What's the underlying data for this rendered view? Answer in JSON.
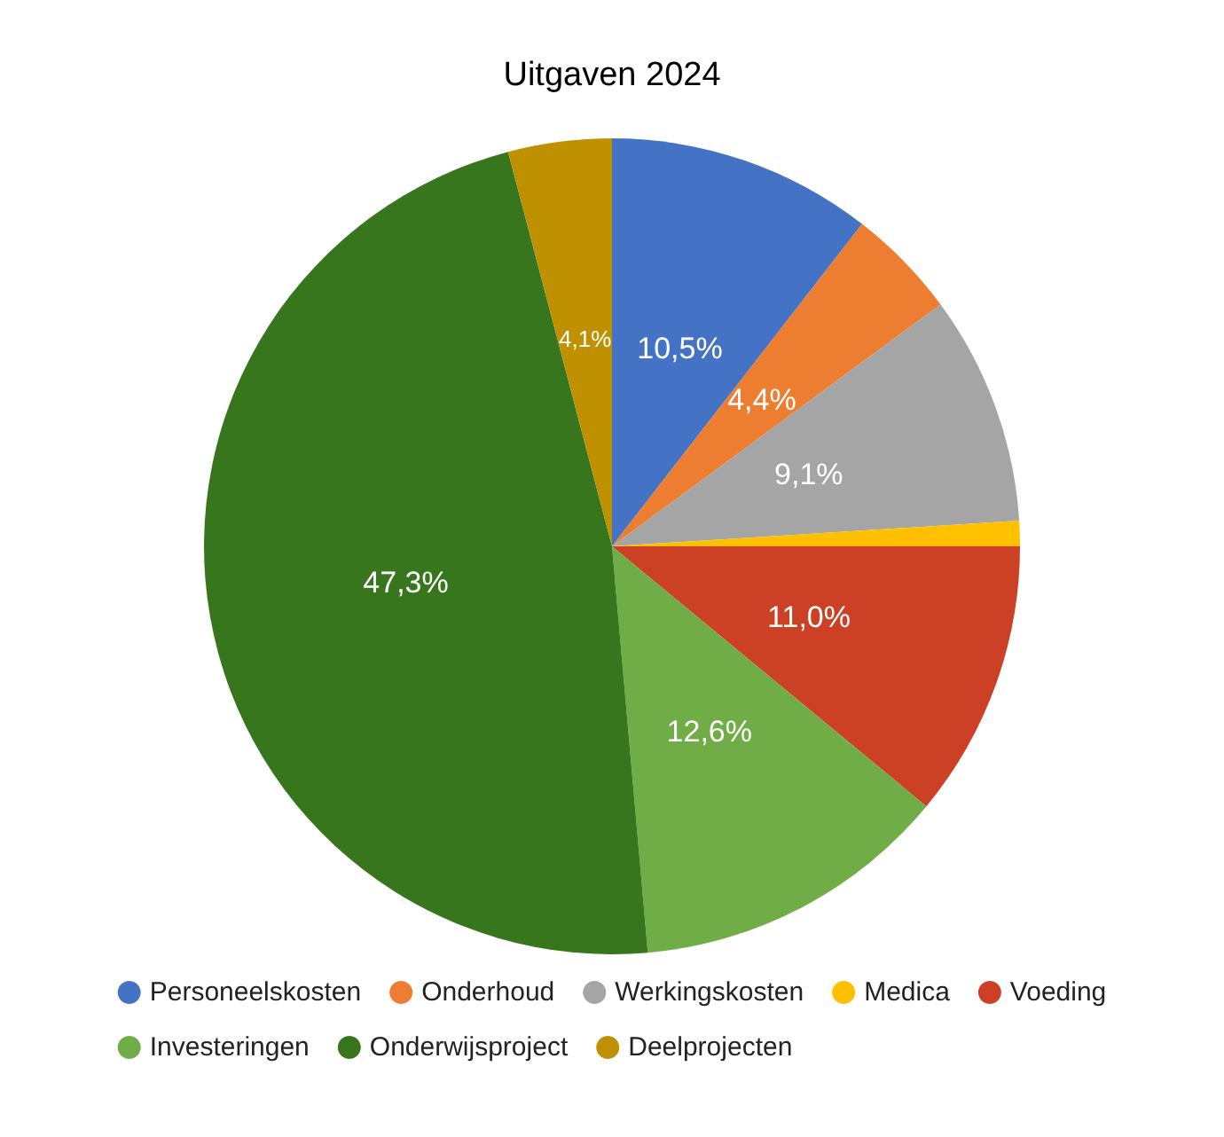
{
  "chart_data": {
    "type": "pie",
    "title": "Uitgaven 2024",
    "categories": [
      "Personeelskosten",
      "Onderhoud",
      "Werkingskosten",
      "Medica",
      "Voeding",
      "Investeringen",
      "Onderwijsproject",
      "Deelprojecten"
    ],
    "values": [
      10.5,
      4.4,
      9.1,
      1.0,
      11.0,
      12.6,
      47.3,
      4.1
    ],
    "colors": [
      "#4472c4",
      "#ed7d31",
      "#a5a5a5",
      "#ffc000",
      "#cc4125",
      "#70ad47",
      "#38761d",
      "#bf9000"
    ],
    "value_labels": [
      "10,5%",
      "4,4%",
      "9,1%",
      null,
      "11,0%",
      "12,6%",
      "47,3%",
      "4,1%"
    ],
    "legend": "bottom"
  }
}
